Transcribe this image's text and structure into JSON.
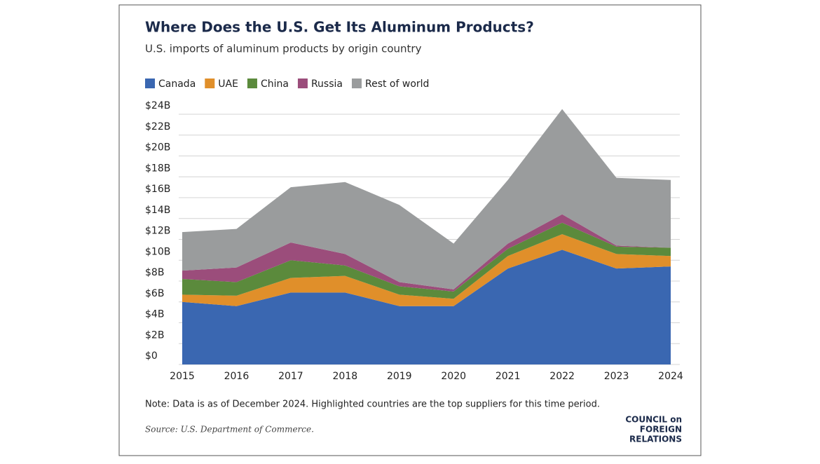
{
  "chart_data": {
    "type": "stacked-area",
    "title": "Where Does the U.S. Get Its Aluminum Products?",
    "subtitle": "U.S. imports of aluminum products by origin country",
    "categories": [
      "2015",
      "2016",
      "2017",
      "2018",
      "2019",
      "2020",
      "2021",
      "2022",
      "2023",
      "2024"
    ],
    "series": [
      {
        "name": "Canada",
        "color": "#3a67b1",
        "values": [
          6.0,
          5.6,
          6.9,
          6.9,
          5.6,
          5.6,
          9.2,
          11.0,
          9.2,
          9.4
        ]
      },
      {
        "name": "UAE",
        "color": "#e08f2a",
        "values": [
          0.7,
          1.0,
          1.4,
          1.6,
          1.1,
          0.7,
          1.2,
          1.5,
          1.4,
          1.0
        ]
      },
      {
        "name": "China",
        "color": "#5b8a3c",
        "values": [
          1.5,
          1.3,
          1.7,
          1.0,
          0.8,
          0.7,
          0.7,
          1.1,
          0.7,
          0.8
        ]
      },
      {
        "name": "Russia",
        "color": "#9b4d7b",
        "values": [
          0.8,
          1.4,
          1.7,
          1.1,
          0.4,
          0.2,
          0.5,
          0.8,
          0.1,
          0.0
        ]
      },
      {
        "name": "Rest of world",
        "color": "#9a9c9d",
        "values": [
          3.7,
          3.7,
          5.3,
          6.9,
          7.4,
          4.4,
          6.1,
          10.1,
          6.5,
          6.5
        ]
      }
    ],
    "ylim": [
      0,
      25
    ],
    "yticks": [
      {
        "value": 0,
        "label": "$0"
      },
      {
        "value": 2,
        "label": "$2B"
      },
      {
        "value": 4,
        "label": "$4B"
      },
      {
        "value": 6,
        "label": "$6B"
      },
      {
        "value": 8,
        "label": "$8B"
      },
      {
        "value": 10,
        "label": "$10B"
      },
      {
        "value": 12,
        "label": "$12B"
      },
      {
        "value": 14,
        "label": "$14B"
      },
      {
        "value": 16,
        "label": "$16B"
      },
      {
        "value": 18,
        "label": "$18B"
      },
      {
        "value": 20,
        "label": "$20B"
      },
      {
        "value": 22,
        "label": "$22B"
      },
      {
        "value": 24,
        "label": "$24B"
      }
    ],
    "grid": true,
    "legend": "top-left",
    "note": "Note: Data is as of December 2024. Highlighted countries are the top suppliers for this time period.",
    "source": "Source: U.S. Department of Commerce.",
    "logo": [
      "COUNCIL on",
      "FOREIGN",
      "RELATIONS"
    ]
  }
}
